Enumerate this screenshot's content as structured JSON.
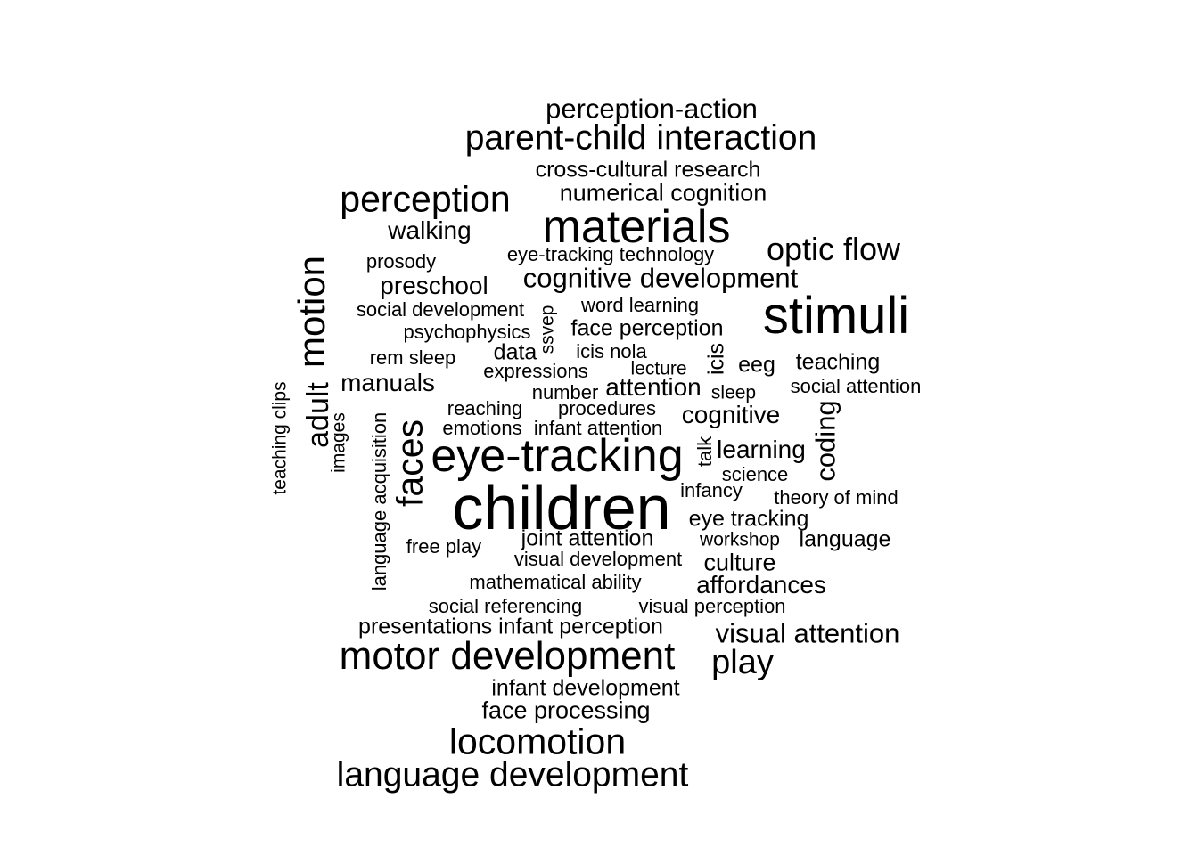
{
  "wordcloud": {
    "text_color": "#000000",
    "background": "#ffffff",
    "words": [
      {
        "text": "perception-action"
      },
      {
        "text": "parent-child interaction"
      },
      {
        "text": "cross-cultural research"
      },
      {
        "text": "perception"
      },
      {
        "text": "numerical cognition"
      },
      {
        "text": "materials"
      },
      {
        "text": "walking"
      },
      {
        "text": "optic flow"
      },
      {
        "text": "prosody"
      },
      {
        "text": "eye-tracking technology"
      },
      {
        "text": "motion"
      },
      {
        "text": "preschool"
      },
      {
        "text": "cognitive development"
      },
      {
        "text": "social development"
      },
      {
        "text": "word learning"
      },
      {
        "text": "stimuli"
      },
      {
        "text": "ssvep"
      },
      {
        "text": "psychophysics"
      },
      {
        "text": "face perception"
      },
      {
        "text": "data"
      },
      {
        "text": "icis nola"
      },
      {
        "text": "rem sleep"
      },
      {
        "text": "icis"
      },
      {
        "text": "eeg"
      },
      {
        "text": "teaching"
      },
      {
        "text": "expressions"
      },
      {
        "text": "lecture"
      },
      {
        "text": "adult"
      },
      {
        "text": "manuals"
      },
      {
        "text": "attention"
      },
      {
        "text": "social attention"
      },
      {
        "text": "teaching clips"
      },
      {
        "text": "number"
      },
      {
        "text": "sleep"
      },
      {
        "text": "reaching"
      },
      {
        "text": "procedures"
      },
      {
        "text": "cognitive"
      },
      {
        "text": "coding"
      },
      {
        "text": "images"
      },
      {
        "text": "language acquisition"
      },
      {
        "text": "emotions"
      },
      {
        "text": "infant attention"
      },
      {
        "text": "faces"
      },
      {
        "text": "eye-tracking"
      },
      {
        "text": "talk"
      },
      {
        "text": "learning"
      },
      {
        "text": "science"
      },
      {
        "text": "children"
      },
      {
        "text": "infancy"
      },
      {
        "text": "theory of mind"
      },
      {
        "text": "eye tracking"
      },
      {
        "text": "joint attention"
      },
      {
        "text": "free play"
      },
      {
        "text": "workshop"
      },
      {
        "text": "language"
      },
      {
        "text": "visual development"
      },
      {
        "text": "culture"
      },
      {
        "text": "mathematical ability"
      },
      {
        "text": "affordances"
      },
      {
        "text": "social referencing"
      },
      {
        "text": "visual perception"
      },
      {
        "text": "presentations infant perception"
      },
      {
        "text": "visual attention"
      },
      {
        "text": "motor development"
      },
      {
        "text": "play"
      },
      {
        "text": "infant development"
      },
      {
        "text": "face processing"
      },
      {
        "text": "locomotion"
      },
      {
        "text": "language development"
      }
    ]
  }
}
